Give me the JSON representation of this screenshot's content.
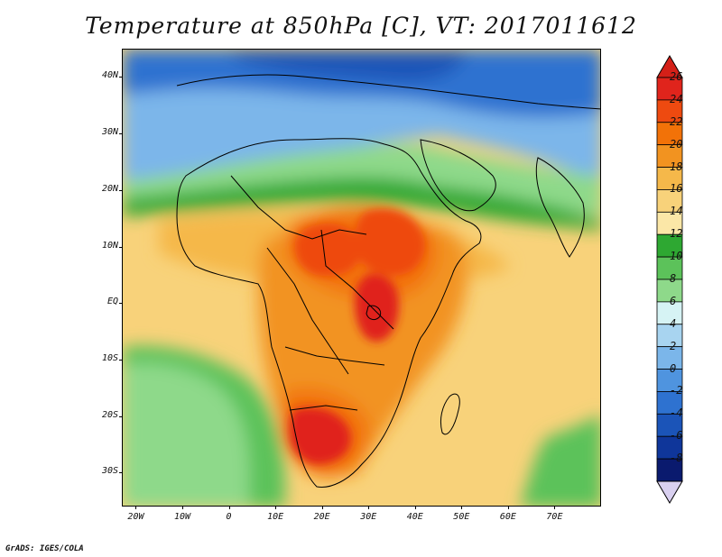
{
  "title": "Temperature at 850hPa [C], VT: 2017011612",
  "credit": "GrADS: IGES/COLA",
  "map": {
    "lon_range": [
      -23,
      80
    ],
    "lat_range": [
      -36,
      45
    ],
    "lat_labels": [
      "40N",
      "30N",
      "20N",
      "10N",
      "EQ",
      "10S",
      "20S",
      "30S"
    ],
    "lon_labels": [
      "20W",
      "10W",
      "0",
      "10E",
      "20E",
      "30E",
      "40E",
      "50E",
      "60E",
      "70E"
    ],
    "lat_values": [
      40,
      30,
      20,
      10,
      0,
      -10,
      -20,
      -30
    ],
    "lon_values": [
      -20,
      -10,
      0,
      10,
      20,
      30,
      40,
      50,
      60,
      70
    ]
  },
  "colorbar": {
    "unit": "C",
    "labels": [
      "26",
      "24",
      "22",
      "20",
      "18",
      "16",
      "14",
      "12",
      "10",
      "8",
      "6",
      "4",
      "2",
      "0",
      "-2",
      "-4",
      "-6",
      "-8"
    ],
    "colors": [
      "#e0241c",
      "#ee4a10",
      "#f27208",
      "#f29320",
      "#f5b84a",
      "#f8d27a",
      "#fbe7a7",
      "#2ea832",
      "#5cc25a",
      "#8ed98a",
      "#d6f3f4",
      "#a8d4f0",
      "#7bb6ea",
      "#4f94df",
      "#2e72d0",
      "#1b54b8",
      "#0f369a",
      "#0a1a6e"
    ],
    "over_color": "#d42018",
    "under_color": "#d9d0f0"
  },
  "chart_data": {
    "type": "heatmap",
    "title": "Temperature at 850hPa [C], VT: 2017011612",
    "xlabel": "",
    "ylabel": "",
    "x_ticks": [
      "20W",
      "10W",
      "0",
      "10E",
      "20E",
      "30E",
      "40E",
      "50E",
      "60E",
      "70E"
    ],
    "y_ticks": [
      "40N",
      "30N",
      "20N",
      "10N",
      "EQ",
      "10S",
      "20S",
      "30S"
    ],
    "xlim": [
      -23,
      80
    ],
    "ylim": [
      -36,
      45
    ],
    "color_levels": [
      -8,
      -6,
      -4,
      -2,
      0,
      2,
      4,
      6,
      8,
      10,
      12,
      14,
      16,
      18,
      20,
      22,
      24,
      26
    ]
  }
}
